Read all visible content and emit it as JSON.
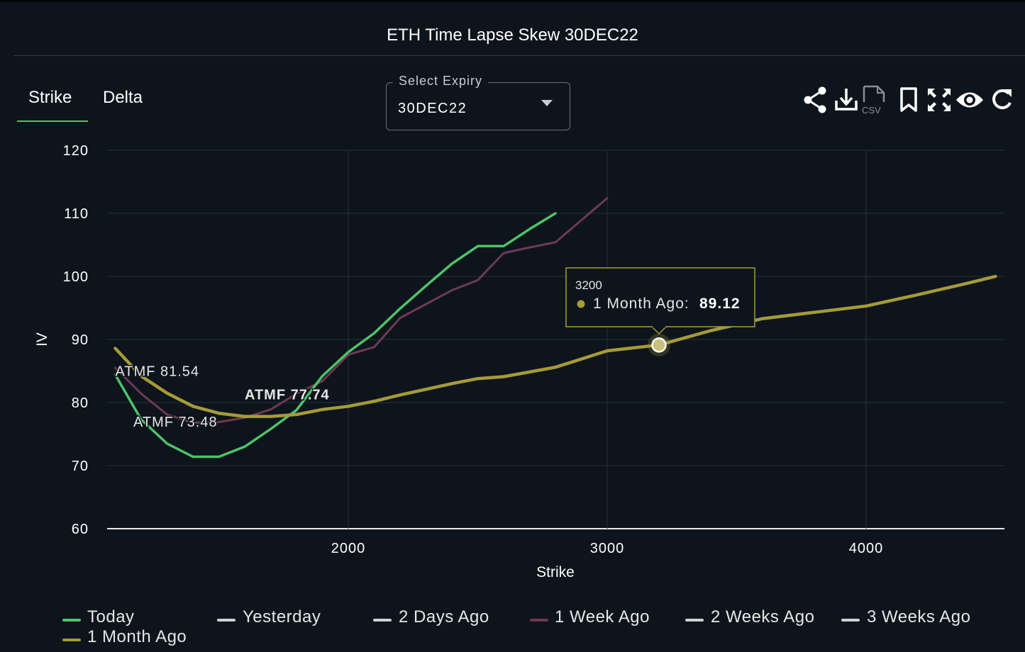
{
  "header": {
    "title": "ETH Time Lapse Skew 30DEC22"
  },
  "tabs": [
    {
      "label": "Strike",
      "active": true
    },
    {
      "label": "Delta",
      "active": false
    }
  ],
  "expiry_select": {
    "legend": "Select Expiry",
    "value": "30DEC22"
  },
  "toolbar": {
    "csv_label": "CSV",
    "icons": [
      "share-icon",
      "download-icon",
      "csv-file-icon",
      "bookmark-icon",
      "fullscreen-icon",
      "eye-icon",
      "refresh-icon"
    ]
  },
  "colors": {
    "background": "#0e141c",
    "grid": "#232a33",
    "today": "#4ec36a",
    "one_week_ago": "#6e3a50",
    "one_month_ago": "#a59b38",
    "other_series": "#d0d0d0"
  },
  "tooltip": {
    "strike": "3200",
    "series": "1 Month Ago",
    "value": "89.12"
  },
  "atmf_labels": [
    {
      "text": "ATMF 81.54",
      "x": 1100,
      "y": 84.2
    },
    {
      "text": "ATMF 77.74",
      "x": 1600,
      "y": 80.5
    },
    {
      "text": "ATMF 73.48",
      "x": 1170,
      "y": 76.2
    }
  ],
  "chart_data": {
    "type": "line",
    "title": "ETH Time Lapse Skew 30DEC22",
    "xlabel": "Strike",
    "ylabel": "IV",
    "xlim": [
      1070,
      4530
    ],
    "ylim": [
      60,
      120
    ],
    "xticks": [
      2000,
      3000,
      4000
    ],
    "yticks": [
      60,
      70,
      80,
      90,
      100,
      110,
      120
    ],
    "grid": true,
    "legend_position": "bottom",
    "series": [
      {
        "name": "Today",
        "color": "#4ec36a",
        "x": [
          1100,
          1200,
          1300,
          1400,
          1500,
          1600,
          1700,
          1800,
          1900,
          2000,
          2100,
          2200,
          2300,
          2400,
          2500,
          2600,
          2700,
          2800
        ],
        "y": [
          84.4,
          77.3,
          73.5,
          71.4,
          71.4,
          73.0,
          75.8,
          78.8,
          84.2,
          88.0,
          91.0,
          94.9,
          98.5,
          102.0,
          104.8,
          104.8,
          107.5,
          110.0
        ]
      },
      {
        "name": "Yesterday",
        "color": "#d0d0d0",
        "x": [],
        "y": []
      },
      {
        "name": "2 Days Ago",
        "color": "#d0d0d0",
        "x": [],
        "y": []
      },
      {
        "name": "1 Week Ago",
        "color": "#6e3a50",
        "x": [
          1100,
          1200,
          1300,
          1400,
          1500,
          1600,
          1700,
          1800,
          1900,
          2000,
          2100,
          2200,
          2300,
          2400,
          2500,
          2600,
          2700,
          2800,
          3000
        ],
        "y": [
          85.5,
          81.4,
          78.1,
          76.8,
          76.9,
          77.6,
          78.9,
          81.4,
          83.4,
          87.6,
          88.8,
          93.4,
          95.6,
          97.8,
          99.4,
          103.7,
          104.6,
          105.4,
          112.4
        ]
      },
      {
        "name": "2 Weeks Ago",
        "color": "#d0d0d0",
        "x": [],
        "y": []
      },
      {
        "name": "3 Weeks Ago",
        "color": "#d0d0d0",
        "x": [],
        "y": []
      },
      {
        "name": "1 Month Ago",
        "color": "#a59b38",
        "x": [
          1100,
          1200,
          1300,
          1400,
          1500,
          1600,
          1700,
          1800,
          1900,
          2000,
          2100,
          2200,
          2300,
          2400,
          2500,
          2600,
          2800,
          3000,
          3200,
          3400,
          3600,
          3800,
          4000,
          4200,
          4400,
          4500
        ],
        "y": [
          88.6,
          84.2,
          81.5,
          79.4,
          78.3,
          77.8,
          77.8,
          78.1,
          78.9,
          79.4,
          80.2,
          81.2,
          82.1,
          83.0,
          83.8,
          84.1,
          85.6,
          88.2,
          89.12,
          91.4,
          93.3,
          94.3,
          95.3,
          97.1,
          99.0,
          100.0
        ]
      }
    ]
  }
}
